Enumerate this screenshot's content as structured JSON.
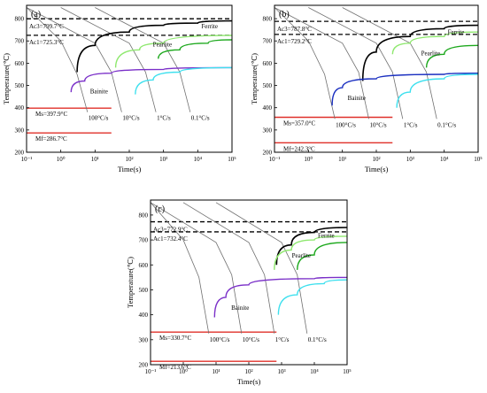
{
  "colors": {
    "ferrite": "#000000",
    "pearlite": "#1ca81c",
    "ferrite_light": "#8ee86e",
    "bainite": "#7a2fc8",
    "bainite_b": "#1a2fc0",
    "cyan": "#3ee0ee",
    "ms_line": "#e0302a",
    "cooling": "#707070"
  },
  "chart_data": [
    {
      "type": "line",
      "panel_label": "(a)",
      "xlabel": "Time(s)",
      "ylabel": "Temperature(℃)",
      "xscale": "log",
      "xlim": [
        0.1,
        100000
      ],
      "ylim": [
        200,
        860
      ],
      "xticks": [
        "10⁻¹",
        "10⁰",
        "10¹",
        "10²",
        "10³",
        "10⁴",
        "10⁵"
      ],
      "yticks": [
        200,
        300,
        400,
        500,
        600,
        700,
        800
      ],
      "hlines": [
        {
          "label": "Ac3=799.7°C",
          "value": 799.7,
          "style": "dashed"
        },
        {
          "label": "Ac1=725.3°C",
          "value": 725.3,
          "style": "dashed"
        },
        {
          "label": "Ms=397.9°C",
          "value": 397.9,
          "style": "red",
          "xmax": 30
        },
        {
          "label": "Mf=286.7°C",
          "value": 286.7,
          "style": "red",
          "xmax": 30
        }
      ],
      "cooling_curves": [
        {
          "label": "100°C/s",
          "points": [
            [
              0.1,
              850
            ],
            [
              1,
              700
            ],
            [
              3,
              550
            ],
            [
              6,
              380
            ]
          ]
        },
        {
          "label": "10°C/s",
          "points": [
            [
              0.1,
              850
            ],
            [
              10,
              690
            ],
            [
              30,
              560
            ],
            [
              60,
              380
            ]
          ]
        },
        {
          "label": "1°C/s",
          "points": [
            [
              1,
              850
            ],
            [
              100,
              690
            ],
            [
              300,
              560
            ],
            [
              600,
              380
            ]
          ]
        },
        {
          "label": "0.1°C/s",
          "points": [
            [
              10,
              850
            ],
            [
              1000,
              690
            ],
            [
              3000,
              560
            ],
            [
              6000,
              380
            ]
          ]
        }
      ],
      "series": [
        {
          "name": "Ferrite",
          "color": "ferrite",
          "points": [
            [
              3,
              560
            ],
            [
              10,
              680
            ],
            [
              100,
              740
            ],
            [
              1000,
              770
            ],
            [
              10000,
              780
            ],
            [
              100000,
              790
            ]
          ]
        },
        {
          "name": "",
          "color": "ferrite_light",
          "points": [
            [
              40,
              580
            ],
            [
              200,
              660
            ],
            [
              1000,
              690
            ],
            [
              100000,
              725
            ]
          ]
        },
        {
          "name": "Pearlite",
          "color": "pearlite",
          "points": [
            [
              700,
              620
            ],
            [
              3000,
              660
            ],
            [
              20000,
              690
            ],
            [
              100000,
              705
            ]
          ]
        },
        {
          "name": "Bainite",
          "color": "bainite",
          "points": [
            [
              2,
              470
            ],
            [
              5,
              520
            ],
            [
              30,
              555
            ],
            [
              1000,
              572
            ],
            [
              100000,
              580
            ]
          ]
        },
        {
          "name": "",
          "color": "cyan",
          "points": [
            [
              150,
              460
            ],
            [
              500,
              525
            ],
            [
              3000,
              560
            ],
            [
              100000,
              580
            ]
          ]
        }
      ],
      "rate_labels": [
        "100°C/s",
        "10°C/s",
        "1°C/s",
        "0.1°C/s"
      ]
    },
    {
      "type": "line",
      "panel_label": "(b)",
      "xlabel": "Time(s)",
      "ylabel": "Temperature(℃)",
      "xscale": "log",
      "xlim": [
        0.1,
        100000
      ],
      "ylim": [
        200,
        860
      ],
      "xticks": [
        "10⁻¹",
        "10⁰",
        "10¹",
        "10²",
        "10³",
        "10⁴",
        "10⁵"
      ],
      "yticks": [
        200,
        300,
        400,
        500,
        600,
        700,
        800
      ],
      "hlines": [
        {
          "label": "Ac3=787.8°C",
          "value": 787.8,
          "style": "dashed"
        },
        {
          "label": "Ac1=729.2°C",
          "value": 729.2,
          "style": "dashed"
        },
        {
          "label": "Ms=357.0°C",
          "value": 357.0,
          "style": "red",
          "xmax": 300
        },
        {
          "label": "Mf=242.3°C",
          "value": 242.3,
          "style": "red",
          "xmax": 300
        }
      ],
      "cooling_curves": [
        {
          "label": "100°C/s",
          "points": [
            [
              0.1,
              850
            ],
            [
              1,
              700
            ],
            [
              3,
              550
            ],
            [
              6,
              350
            ]
          ]
        },
        {
          "label": "10°C/s",
          "points": [
            [
              0.1,
              850
            ],
            [
              10,
              690
            ],
            [
              30,
              560
            ],
            [
              60,
              350
            ]
          ]
        },
        {
          "label": "1°C/s",
          "points": [
            [
              1,
              850
            ],
            [
              100,
              690
            ],
            [
              300,
              560
            ],
            [
              600,
              350
            ]
          ]
        },
        {
          "label": "0.1°C/s",
          "points": [
            [
              10,
              850
            ],
            [
              1000,
              690
            ],
            [
              3000,
              560
            ],
            [
              6000,
              350
            ]
          ]
        }
      ],
      "series": [
        {
          "name": "Ferrite",
          "color": "ferrite",
          "points": [
            [
              40,
              520
            ],
            [
              100,
              650
            ],
            [
              1000,
              720
            ],
            [
              10000,
              755
            ],
            [
              100000,
              770
            ]
          ]
        },
        {
          "name": "",
          "color": "ferrite_light",
          "points": [
            [
              300,
              640
            ],
            [
              1000,
              690
            ],
            [
              10000,
              720
            ],
            [
              100000,
              740
            ]
          ]
        },
        {
          "name": "Pearlite",
          "color": "pearlite",
          "points": [
            [
              3000,
              580
            ],
            [
              10000,
              640
            ],
            [
              100000,
              680
            ]
          ]
        },
        {
          "name": "Bainite",
          "color": "bainite_b",
          "points": [
            [
              5,
              410
            ],
            [
              10,
              490
            ],
            [
              100,
              530
            ],
            [
              10000,
              550
            ],
            [
              100000,
              555
            ]
          ]
        },
        {
          "name": "",
          "color": "cyan",
          "points": [
            [
              400,
              400
            ],
            [
              1000,
              470
            ],
            [
              10000,
              530
            ],
            [
              100000,
              550
            ]
          ]
        }
      ],
      "rate_labels": [
        "100°C/s",
        "10°C/s",
        "1°C/s",
        "0.1°C/s"
      ]
    },
    {
      "type": "line",
      "panel_label": "(c)",
      "xlabel": "Time(s)",
      "ylabel": "Temperature(℃)",
      "xscale": "log",
      "xlim": [
        0.1,
        100000
      ],
      "ylim": [
        200,
        860
      ],
      "xticks": [
        "10⁻¹",
        "10⁰",
        "10¹",
        "10²",
        "10³",
        "10⁴",
        "10⁵"
      ],
      "yticks": [
        200,
        300,
        400,
        500,
        600,
        700,
        800
      ],
      "hlines": [
        {
          "label": "Ac3=772.9°C",
          "value": 772.9,
          "style": "dashed"
        },
        {
          "label": "Ac1=732.4°C",
          "value": 732.4,
          "style": "dashed"
        },
        {
          "label": "Ms=330.7°C",
          "value": 330.7,
          "style": "red",
          "xmax": 700
        },
        {
          "label": "Mf=213.6°C",
          "value": 213.6,
          "style": "red",
          "xmax": 700
        }
      ],
      "cooling_curves": [
        {
          "label": "100°C/s",
          "points": [
            [
              0.1,
              850
            ],
            [
              1,
              700
            ],
            [
              3,
              550
            ],
            [
              6,
              325
            ]
          ]
        },
        {
          "label": "10°C/s",
          "points": [
            [
              0.1,
              850
            ],
            [
              10,
              690
            ],
            [
              30,
              560
            ],
            [
              60,
              325
            ]
          ]
        },
        {
          "label": "1°C/s",
          "points": [
            [
              1,
              850
            ],
            [
              100,
              690
            ],
            [
              300,
              560
            ],
            [
              600,
              325
            ]
          ]
        },
        {
          "label": "0.1°C/s",
          "points": [
            [
              10,
              850
            ],
            [
              1000,
              690
            ],
            [
              3000,
              560
            ],
            [
              6000,
              325
            ]
          ]
        }
      ],
      "series": [
        {
          "name": "Ferrite",
          "color": "ferrite",
          "points": [
            [
              700,
              600
            ],
            [
              2000,
              680
            ],
            [
              10000,
              730
            ],
            [
              100000,
              750
            ]
          ]
        },
        {
          "name": "",
          "color": "ferrite_light",
          "points": [
            [
              600,
              580
            ],
            [
              2000,
              660
            ],
            [
              10000,
              700
            ],
            [
              100000,
              715
            ]
          ]
        },
        {
          "name": "Pearlite",
          "color": "pearlite",
          "points": [
            [
              3000,
              580
            ],
            [
              10000,
              640
            ],
            [
              100000,
              690
            ]
          ]
        },
        {
          "name": "Bainite",
          "color": "bainite",
          "points": [
            [
              9,
              390
            ],
            [
              20,
              470
            ],
            [
              100,
              520
            ],
            [
              10000,
              545
            ],
            [
              100000,
              550
            ]
          ]
        },
        {
          "name": "",
          "color": "cyan",
          "points": [
            [
              800,
              400
            ],
            [
              3000,
              480
            ],
            [
              20000,
              525
            ],
            [
              100000,
              540
            ]
          ]
        }
      ],
      "rate_labels": [
        "100°C/s",
        "10°C/s",
        "1°C/s",
        "0.1°C/s"
      ]
    }
  ]
}
